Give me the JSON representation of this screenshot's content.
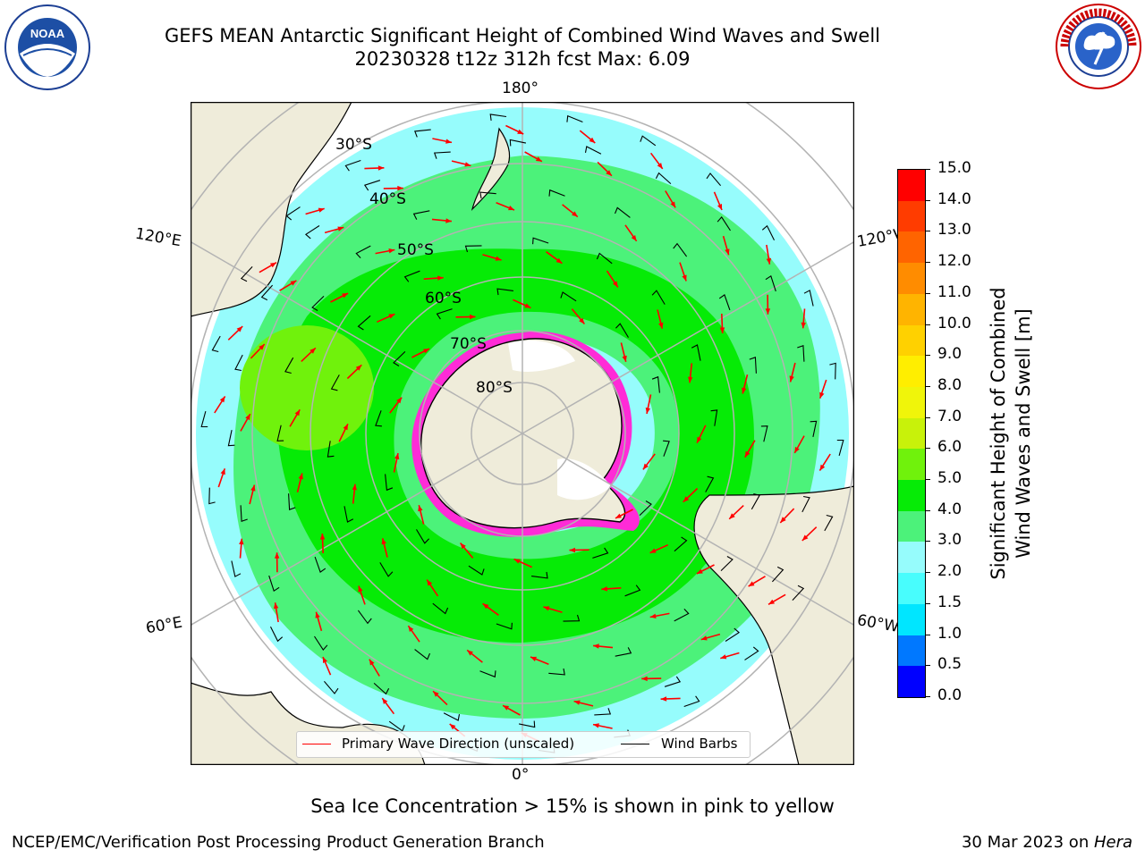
{
  "header": {
    "title_line1": "GEFS MEAN Antarctic Significant Height of Combined Wind Waves and Swell",
    "title_line2": "20230328 t12z 312h fcst   Max: 6.09"
  },
  "logos": {
    "left": {
      "text": "NOAA",
      "icon": "noaa-logo-icon"
    },
    "right": {
      "text": "NATIONAL WEATHER SERVICE",
      "icon": "nws-logo-icon"
    }
  },
  "map": {
    "projection": "south-polar-stereographic",
    "meridian_labels": {
      "top": "180°",
      "bottom": "0°",
      "left_upper": "120°E",
      "left_lower": "60°E",
      "right_upper": "120°W",
      "right_lower": "60°W"
    },
    "latitude_labels": [
      "30°S",
      "40°S",
      "50°S",
      "60°S",
      "70°S",
      "80°S"
    ],
    "colors": {
      "land": "#efecda",
      "ocean_low": "#96fcfc",
      "wave_3_4": "#4cf27a",
      "wave_4_5": "#06eb06",
      "wave_5_6": "#70f20c",
      "ice_edge": "#ff2bd7",
      "ice_secondary": "#ffb400",
      "arrow": "#ff0000",
      "barb": "#000000"
    }
  },
  "colorbar": {
    "label_line1": "Significant Height of Combined",
    "label_line2": "Wind Waves and Swell [m]",
    "ticks": [
      "0.0",
      "0.5",
      "1.0",
      "1.5",
      "2.0",
      "3.0",
      "4.0",
      "5.0",
      "6.0",
      "7.0",
      "8.0",
      "9.0",
      "10.0",
      "11.0",
      "12.0",
      "13.0",
      "14.0",
      "15.0"
    ],
    "colors": [
      "#0000ff",
      "#0078ff",
      "#00e6ff",
      "#48fdfd",
      "#96fcfc",
      "#4cf27a",
      "#06eb06",
      "#70f20c",
      "#c8f20a",
      "#f0f50a",
      "#ffee00",
      "#ffd100",
      "#ffb400",
      "#ff8c00",
      "#ff6400",
      "#ff3c00",
      "#ff0000"
    ]
  },
  "legend": {
    "wave_label": "Primary Wave Direction (unscaled)",
    "barb_label": "Wind Barbs"
  },
  "notes": {
    "sea_ice": "Sea Ice Concentration > 15% is shown in pink to yellow"
  },
  "footer": {
    "left": "NCEP/EMC/Verification Post Processing Product Generation Branch",
    "right_prefix": "30 Mar 2023 on ",
    "right_host": "Hera"
  }
}
